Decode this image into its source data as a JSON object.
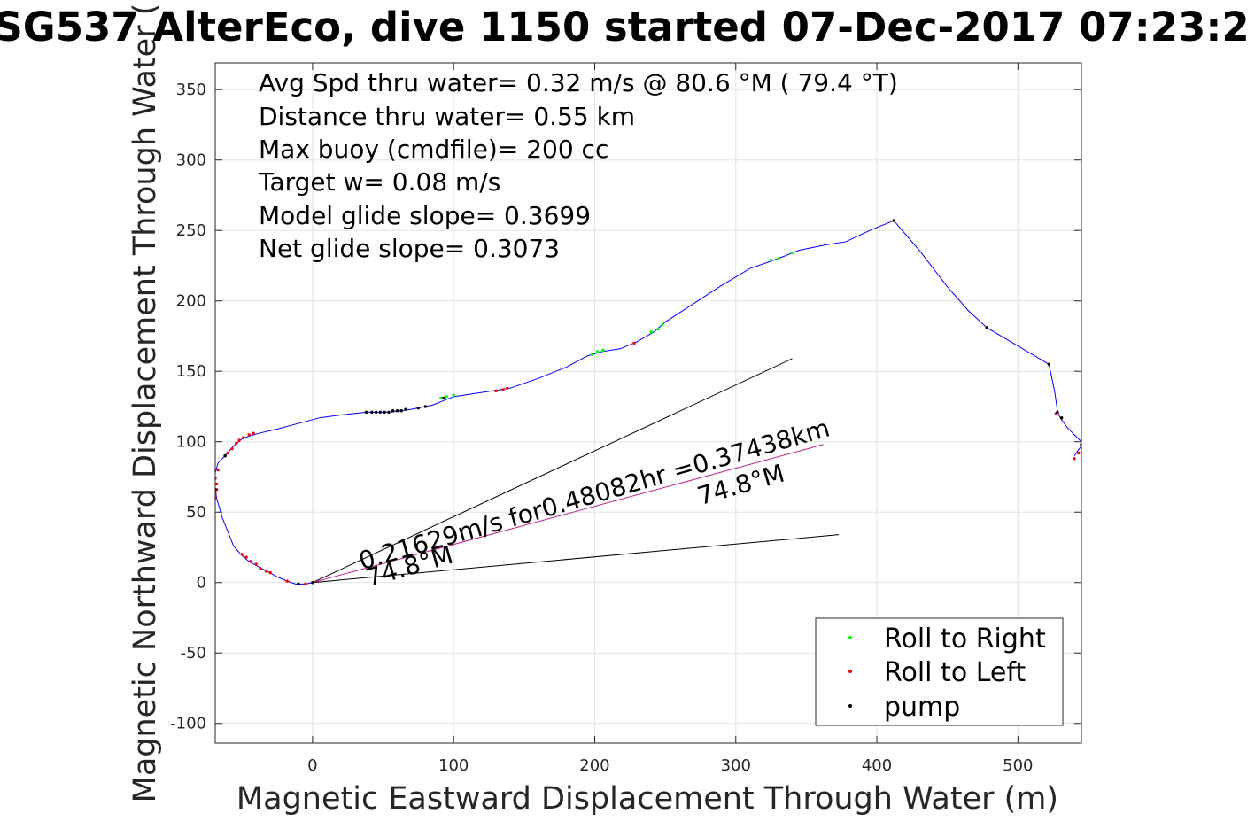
{
  "chart_data": {
    "type": "line",
    "title": "SG537 AlterEco, dive 1150 started 07-Dec-2017 07:23:2",
    "xlabel": "Magnetic Eastward Displacement Through Water (m)",
    "ylabel": "Magnetic Northward Displacement Through Water (",
    "xlim": [
      -69,
      545
    ],
    "ylim": [
      -114,
      369
    ],
    "xticks": [
      0,
      100,
      200,
      300,
      400,
      500
    ],
    "yticks": [
      -100,
      -50,
      0,
      50,
      100,
      150,
      200,
      250,
      300,
      350
    ],
    "grid": true,
    "stats": [
      "Avg Spd thru water=  0.32 m/s @  80.6 °M ( 79.4 °T)",
      "Distance thru water=  0.55 km",
      "Max buoy (cmdfile)= 200 cc",
      "Target w= 0.08 m/s",
      "Model glide slope= 0.3699",
      "Net glide slope= 0.3073"
    ],
    "annotations": [
      {
        "text": "0.21629m/s for0.48082hr =0.37438km",
        "x": 35,
        "y": 9,
        "angle_deg": 16
      },
      {
        "text": "74.8°M",
        "x": 40,
        "y": -3,
        "angle_deg": 16
      },
      {
        "text": "74.8°M",
        "x": 275,
        "y": 55,
        "angle_deg": 16
      }
    ],
    "heading_lines": [
      {
        "points": [
          [
            0,
            0
          ],
          [
            340,
            159
          ]
        ]
      },
      {
        "points": [
          [
            0,
            0
          ],
          [
            373,
            34
          ]
        ]
      },
      {
        "points": [
          [
            0,
            0
          ],
          [
            362,
            98
          ]
        ],
        "color": "#c0208a"
      }
    ],
    "track": {
      "color": "#0000ff",
      "points": [
        [
          0,
          0
        ],
        [
          -5,
          -1
        ],
        [
          -12,
          -1
        ],
        [
          -18,
          1
        ],
        [
          -25,
          4
        ],
        [
          -32,
          8
        ],
        [
          -38,
          11
        ],
        [
          -45,
          15
        ],
        [
          -50,
          19
        ],
        [
          -56,
          26
        ],
        [
          -60,
          36
        ],
        [
          -64,
          46
        ],
        [
          -66,
          53
        ],
        [
          -68,
          60
        ],
        [
          -69,
          66
        ],
        [
          -69,
          72
        ],
        [
          -69,
          78
        ],
        [
          -67,
          85
        ],
        [
          -62,
          90
        ],
        [
          -56,
          97
        ],
        [
          -50,
          102
        ],
        [
          -45,
          104
        ],
        [
          -38,
          106
        ],
        [
          -25,
          109
        ],
        [
          -10,
          113
        ],
        [
          5,
          117
        ],
        [
          20,
          119
        ],
        [
          38,
          121
        ],
        [
          55,
          121
        ],
        [
          70,
          123
        ],
        [
          85,
          126
        ],
        [
          100,
          132
        ],
        [
          120,
          135
        ],
        [
          140,
          138
        ],
        [
          160,
          145
        ],
        [
          180,
          153
        ],
        [
          195,
          161
        ],
        [
          205,
          164
        ],
        [
          218,
          166
        ],
        [
          230,
          171
        ],
        [
          242,
          178
        ],
        [
          250,
          185
        ],
        [
          270,
          198
        ],
        [
          290,
          211
        ],
        [
          310,
          223
        ],
        [
          330,
          230
        ],
        [
          345,
          236
        ],
        [
          365,
          240
        ],
        [
          378,
          242
        ],
        [
          395,
          250
        ],
        [
          412,
          257
        ],
        [
          430,
          236
        ],
        [
          450,
          210
        ],
        [
          465,
          193
        ],
        [
          478,
          181
        ],
        [
          500,
          168
        ],
        [
          522,
          155
        ],
        [
          526,
          136
        ],
        [
          528,
          122
        ],
        [
          530,
          117
        ],
        [
          535,
          110
        ],
        [
          545,
          100
        ],
        [
          545,
          97
        ],
        [
          542,
          93
        ],
        [
          540,
          90
        ]
      ]
    },
    "series": [
      {
        "name": "Roll to Right",
        "color": "#00ff00",
        "points": [
          [
            91,
            131
          ],
          [
            95,
            132
          ],
          [
            100,
            133
          ],
          [
            130,
            136
          ],
          [
            198,
            162
          ],
          [
            202,
            164
          ],
          [
            206,
            165
          ],
          [
            240,
            178
          ],
          [
            245,
            180
          ],
          [
            248,
            183
          ],
          [
            325,
            229
          ],
          [
            330,
            230
          ],
          [
            340,
            234
          ]
        ]
      },
      {
        "name": "Roll to Left",
        "color": "#ff0000",
        "points": [
          [
            -5,
            -1
          ],
          [
            -18,
            1
          ],
          [
            -30,
            7
          ],
          [
            -33,
            8
          ],
          [
            -37,
            10
          ],
          [
            -40,
            13
          ],
          [
            -44,
            15
          ],
          [
            -47,
            18
          ],
          [
            -50,
            20
          ],
          [
            -69,
            60
          ],
          [
            -69,
            63
          ],
          [
            -68,
            66
          ],
          [
            -68,
            70
          ],
          [
            -69,
            74
          ],
          [
            -67,
            80
          ],
          [
            -62,
            90
          ],
          [
            -60,
            92
          ],
          [
            -57,
            95
          ],
          [
            -54,
            99
          ],
          [
            -52,
            101
          ],
          [
            -49,
            103
          ],
          [
            -45,
            105
          ],
          [
            -42,
            106
          ],
          [
            130,
            136
          ],
          [
            135,
            137
          ],
          [
            138,
            138
          ],
          [
            228,
            170
          ],
          [
            522,
            155
          ],
          [
            527,
            120
          ],
          [
            540,
            88
          ],
          [
            543,
            92
          ],
          [
            545,
            98
          ]
        ]
      },
      {
        "name": "pump",
        "color": "#000000",
        "points": [
          [
            0,
            0
          ],
          [
            -10,
            -1
          ],
          [
            -69,
            66
          ],
          [
            -62,
            90
          ],
          [
            38,
            121
          ],
          [
            42,
            121
          ],
          [
            45,
            121
          ],
          [
            48,
            121
          ],
          [
            51,
            121
          ],
          [
            54,
            121
          ],
          [
            57,
            122
          ],
          [
            60,
            122
          ],
          [
            63,
            122
          ],
          [
            66,
            123
          ],
          [
            75,
            124
          ],
          [
            80,
            125
          ],
          [
            93,
            131
          ],
          [
            412,
            257
          ],
          [
            478,
            181
          ],
          [
            522,
            155
          ],
          [
            528,
            121
          ],
          [
            531,
            117
          ],
          [
            545,
            98
          ]
        ]
      }
    ],
    "legend": {
      "position": "bottom-right",
      "entries": [
        "Roll to Right",
        "Roll to Left",
        "pump"
      ]
    }
  }
}
